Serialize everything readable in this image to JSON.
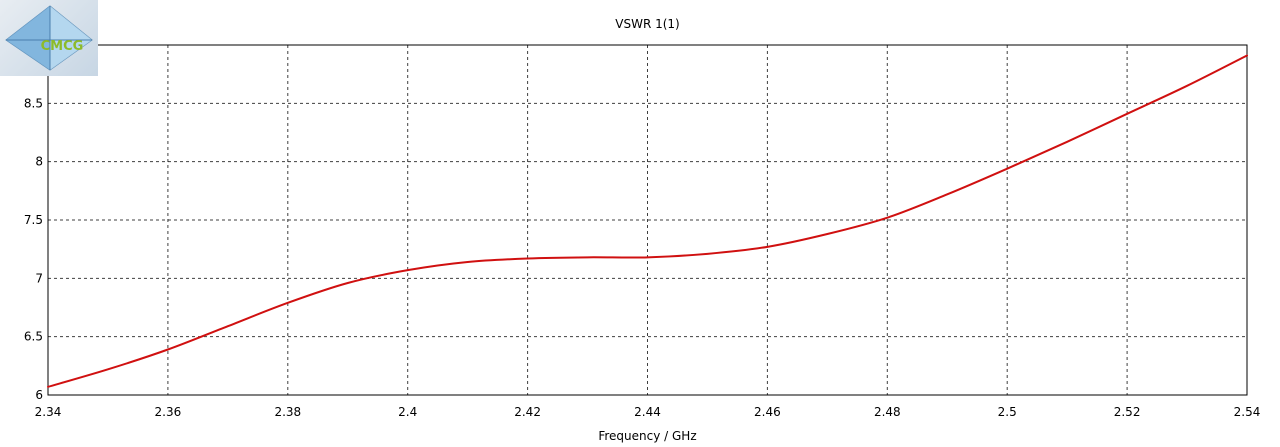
{
  "colors": {
    "series": "#d01010",
    "grid": "#000000",
    "background": "#ffffff"
  },
  "logo": {
    "icon": "pyramid-logo-icon",
    "text": "CMCG"
  },
  "chart_data": {
    "type": "line",
    "title": "VSWR 1(1)",
    "xlabel": "Frequency / GHz",
    "ylabel": "",
    "xlim": [
      2.34,
      2.54
    ],
    "ylim": [
      6,
      9
    ],
    "grid": true,
    "x_ticks": [
      "2.34",
      "2.36",
      "2.38",
      "2.4",
      "2.42",
      "2.44",
      "2.46",
      "2.48",
      "2.5",
      "2.52",
      "2.54"
    ],
    "y_ticks": [
      "6",
      "6.5",
      "7",
      "7.5",
      "8",
      "8.5"
    ],
    "series": [
      {
        "x": [
          2.34,
          2.35,
          2.36,
          2.37,
          2.38,
          2.39,
          2.4,
          2.41,
          2.42,
          2.43,
          2.44,
          2.45,
          2.46,
          2.47,
          2.48,
          2.49,
          2.5,
          2.51,
          2.52,
          2.53,
          2.54
        ],
        "values": [
          6.07,
          6.22,
          6.39,
          6.59,
          6.79,
          6.96,
          7.07,
          7.14,
          7.17,
          7.18,
          7.18,
          7.21,
          7.27,
          7.38,
          7.52,
          7.72,
          7.94,
          8.17,
          8.41,
          8.65,
          8.91
        ]
      }
    ]
  }
}
